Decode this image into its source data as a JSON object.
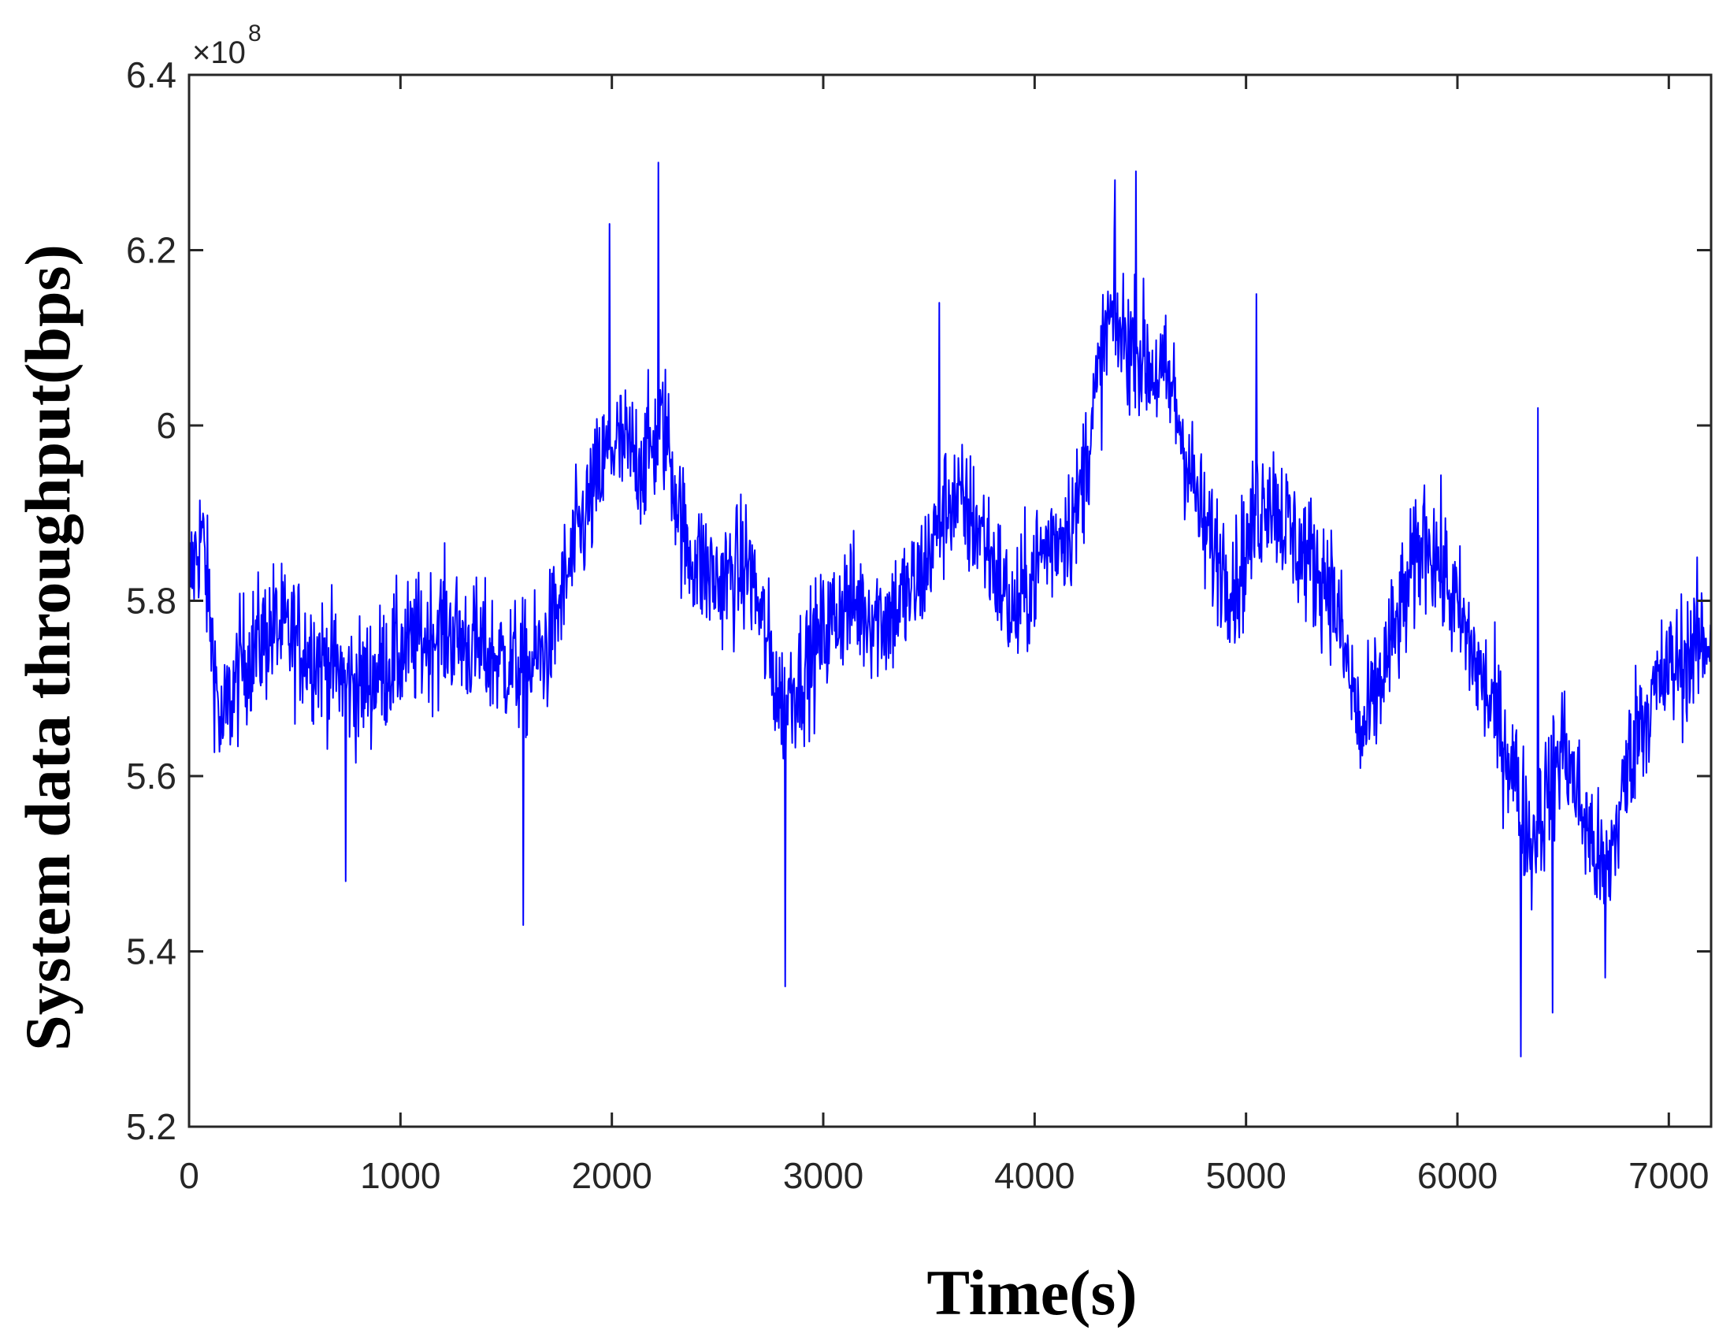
{
  "chart_data": {
    "type": "line",
    "xlabel": "Time(s)",
    "ylabel": "System data throughput(bps)",
    "y_exponent_label": "×10",
    "y_exponent_power": "8",
    "xlim": [
      0,
      7200
    ],
    "ylim": [
      5.2,
      6.4
    ],
    "y_scale_factor": 100000000,
    "xticks": [
      0,
      1000,
      2000,
      3000,
      4000,
      5000,
      6000,
      7000
    ],
    "xtick_labels": [
      "0",
      "1000",
      "2000",
      "3000",
      "4000",
      "5000",
      "6000",
      "7000"
    ],
    "yticks": [
      5.2,
      5.4,
      5.6,
      5.8,
      6.0,
      6.2,
      6.4
    ],
    "ytick_labels": [
      "5.2",
      "5.4",
      "5.6",
      "5.8",
      "6",
      "6.2",
      "6.4"
    ],
    "grid": false,
    "line_color": "#0000ff",
    "series": [
      {
        "name": "",
        "trend_x": [
          0,
          60,
          150,
          250,
          400,
          600,
          800,
          1000,
          1200,
          1400,
          1600,
          1700,
          1850,
          2000,
          2150,
          2250,
          2350,
          2500,
          2650,
          2800,
          2950,
          3100,
          3300,
          3450,
          3600,
          3750,
          3900,
          4050,
          4200,
          4350,
          4500,
          4650,
          4800,
          4950,
          5100,
          5250,
          5400,
          5550,
          5700,
          5850,
          5950,
          6100,
          6250,
          6350,
          6500,
          6600,
          6700,
          6850,
          7000,
          7200
        ],
        "trend_y": [
          5.82,
          5.88,
          5.65,
          5.73,
          5.77,
          5.74,
          5.7,
          5.74,
          5.77,
          5.74,
          5.72,
          5.75,
          5.88,
          5.98,
          5.96,
          6.0,
          5.86,
          5.82,
          5.84,
          5.68,
          5.74,
          5.8,
          5.78,
          5.82,
          5.92,
          5.88,
          5.78,
          5.86,
          5.9,
          6.12,
          6.08,
          6.04,
          5.88,
          5.82,
          5.93,
          5.86,
          5.82,
          5.64,
          5.76,
          5.88,
          5.82,
          5.72,
          5.62,
          5.52,
          5.64,
          5.55,
          5.48,
          5.66,
          5.72,
          5.76
        ],
        "noise_amplitude": 0.075,
        "min_points": [
          [
            2820,
            5.36
          ],
          [
            6300,
            5.28
          ],
          [
            6450,
            5.33
          ],
          [
            1580,
            5.43
          ],
          [
            6700,
            5.37
          ],
          [
            740,
            5.48
          ]
        ],
        "max_points": [
          [
            2220,
            6.3
          ],
          [
            4480,
            6.29
          ],
          [
            1990,
            6.23
          ],
          [
            4380,
            6.28
          ],
          [
            3550,
            6.14
          ],
          [
            5050,
            6.15
          ],
          [
            6380,
            6.02
          ]
        ]
      }
    ]
  }
}
